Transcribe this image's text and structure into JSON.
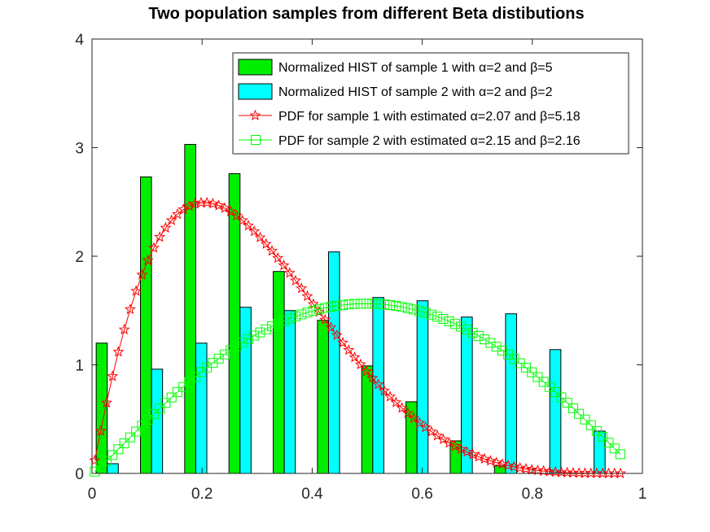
{
  "chart_data": {
    "type": "bar",
    "title": "Two population samples from different Beta distibutions",
    "xlabel": "",
    "ylabel": "",
    "xlim": [
      0,
      1
    ],
    "ylim": [
      0,
      4
    ],
    "xticks": [
      "0",
      "0.2",
      "0.4",
      "0.6",
      "0.8",
      "1"
    ],
    "yticks": [
      "0",
      "1",
      "2",
      "3",
      "4"
    ],
    "grid": false,
    "legend_position": "top-right",
    "bin_centers": [
      0.0277,
      0.1081,
      0.1885,
      0.2689,
      0.3493,
      0.4297,
      0.5101,
      0.5905,
      0.6709,
      0.7513,
      0.8317,
      0.9121
    ],
    "series": [
      {
        "name": "Normalized HIST of sample 1 with α=2 and β=5",
        "kind": "bar",
        "color": "#00ee00",
        "values": [
          1.2,
          2.73,
          3.03,
          2.76,
          1.86,
          1.41,
          0.99,
          0.66,
          0.3,
          0.07,
          0.0,
          0.0
        ]
      },
      {
        "name": "Normalized HIST of sample 2 with α=2 and β=2",
        "kind": "bar",
        "color": "#00ffff",
        "values": [
          0.09,
          0.96,
          1.2,
          1.53,
          1.5,
          2.04,
          1.62,
          1.59,
          1.44,
          1.47,
          1.14,
          0.39
        ]
      },
      {
        "name": "PDF for sample 1 with estimated α=2.07 and β=5.18",
        "kind": "line",
        "color": "#ff0000",
        "marker": "star",
        "alpha": 2.07,
        "beta": 5.18,
        "x_range": [
          0.005,
          0.96
        ],
        "points": 90
      },
      {
        "name": "PDF for sample 2 with estimated α=2.15 and β=2.16",
        "kind": "line",
        "color": "#00ff00",
        "marker": "square",
        "alpha": 2.15,
        "beta": 2.16,
        "x_range": [
          0.005,
          0.96
        ],
        "points": 90
      }
    ]
  }
}
